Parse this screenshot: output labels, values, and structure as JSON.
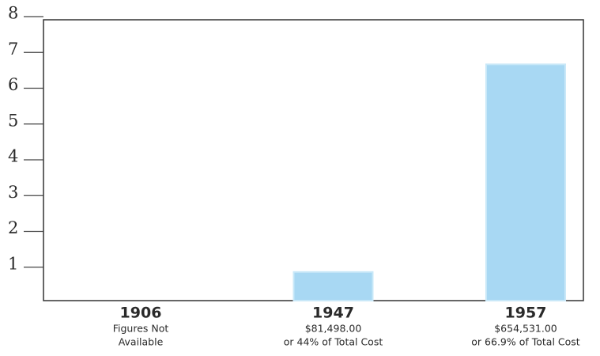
{
  "chart_data": {
    "type": "bar",
    "categories": [
      "1906",
      "1947",
      "1957"
    ],
    "sublabels": [
      [
        "Figures Not",
        "Available"
      ],
      [
        "$81,498.00",
        "or 44% of Total Cost"
      ],
      [
        "$654,531.00",
        "or 66.9% of Total Cost"
      ]
    ],
    "values": [
      null,
      0.8,
      6.6
    ],
    "color": "#a8d8f3",
    "ylim": [
      0,
      8
    ],
    "yticks": [
      1,
      2,
      3,
      4,
      5,
      6,
      7,
      8
    ]
  }
}
